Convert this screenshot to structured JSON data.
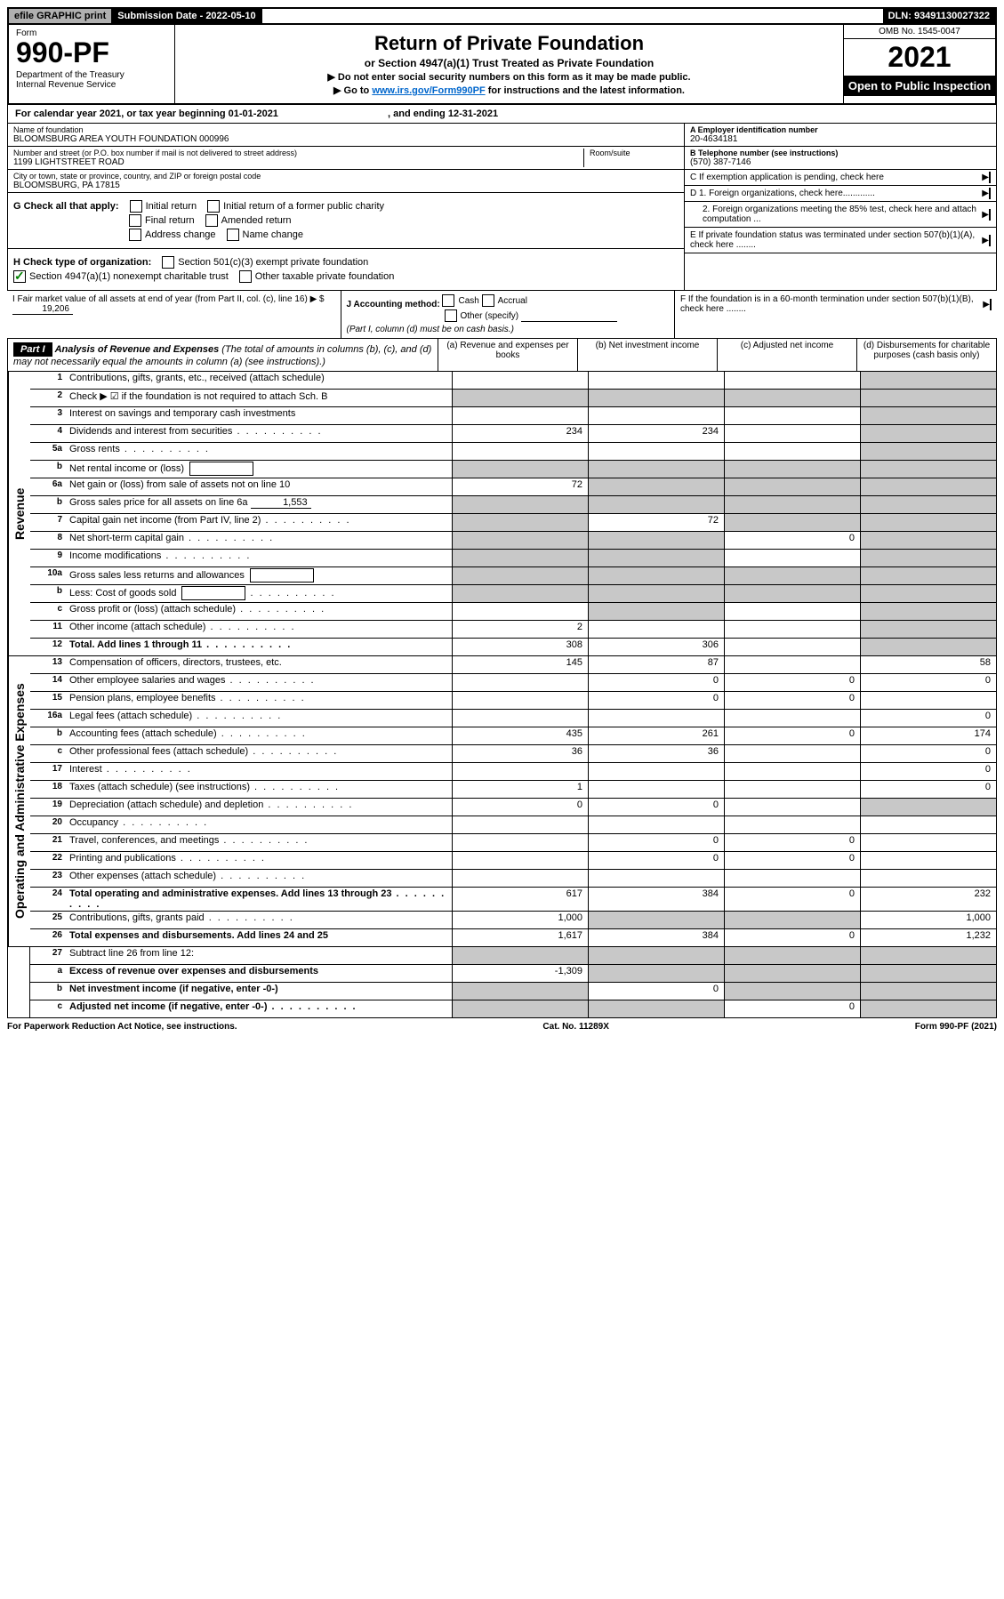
{
  "topbar": {
    "efile": "efile GRAPHIC print",
    "sub_label": "Submission Date - 2022-05-10",
    "dln": "DLN: 93491130027322"
  },
  "header": {
    "form_label": "Form",
    "form_no": "990-PF",
    "dept": "Department of the Treasury\nInternal Revenue Service",
    "title": "Return of Private Foundation",
    "subtitle": "or Section 4947(a)(1) Trust Treated as Private Foundation",
    "note1": "▶ Do not enter social security numbers on this form as it may be made public.",
    "note2_pre": "▶ Go to ",
    "note2_link": "www.irs.gov/Form990PF",
    "note2_post": " for instructions and the latest information.",
    "omb": "OMB No. 1545-0047",
    "year": "2021",
    "open": "Open to Public Inspection"
  },
  "cal_year": {
    "pre": "For calendar year 2021, or tax year beginning ",
    "begin": "01-01-2021",
    "mid": " , and ending ",
    "end": "12-31-2021"
  },
  "foundation": {
    "name_lbl": "Name of foundation",
    "name": "BLOOMSBURG AREA YOUTH FOUNDATION 000996",
    "addr_lbl": "Number and street (or P.O. box number if mail is not delivered to street address)",
    "addr": "1199 LIGHTSTREET ROAD",
    "room_lbl": "Room/suite",
    "city_lbl": "City or town, state or province, country, and ZIP or foreign postal code",
    "city": "BLOOMSBURG, PA  17815",
    "ein_lbl": "A Employer identification number",
    "ein": "20-4634181",
    "phone_lbl": "B Telephone number (see instructions)",
    "phone": "(570) 387-7146",
    "c": "C If exemption application is pending, check here",
    "d1": "D 1. Foreign organizations, check here.............",
    "d2": "2. Foreign organizations meeting the 85% test, check here and attach computation ...",
    "e": "E  If private foundation status was terminated under section 507(b)(1)(A), check here ........",
    "f": "F  If the foundation is in a 60-month termination under section 507(b)(1)(B), check here ........"
  },
  "g": {
    "label": "G Check all that apply:",
    "opts": [
      "Initial return",
      "Final return",
      "Address change",
      "Initial return of a former public charity",
      "Amended return",
      "Name change"
    ]
  },
  "h": {
    "label": "H Check type of organization:",
    "opt1": "Section 501(c)(3) exempt private foundation",
    "opt2": "Section 4947(a)(1) nonexempt charitable trust",
    "opt3": "Other taxable private foundation"
  },
  "i": {
    "label": "I Fair market value of all assets at end of year (from Part II, col. (c), line 16)",
    "val": "19,206"
  },
  "j": {
    "label": "J Accounting method:",
    "cash": "Cash",
    "accrual": "Accrual",
    "other": "Other (specify)",
    "note": "(Part I, column (d) must be on cash basis.)"
  },
  "part1": {
    "tag": "Part I",
    "title": "Analysis of Revenue and Expenses",
    "paren": "(The total of amounts in columns (b), (c), and (d) may not necessarily equal the amounts in column (a) (see instructions).)",
    "col_a": "(a)   Revenue and expenses per books",
    "col_b": "(b)   Net investment income",
    "col_c": "(c)   Adjusted net income",
    "col_d": "(d)  Disbursements for charitable purposes (cash basis only)"
  },
  "sections": {
    "revenue": "Revenue",
    "expenses": "Operating and Administrative Expenses"
  },
  "rows": [
    {
      "no": "1",
      "label": "Contributions, gifts, grants, etc., received (attach schedule)",
      "a": "",
      "b": "",
      "c": "",
      "d": "",
      "grey": [
        "d"
      ]
    },
    {
      "no": "2",
      "label": "Check ▶ ☑ if the foundation is not required to attach Sch. B",
      "bold_check": true,
      "a": "",
      "b": "",
      "c": "",
      "d": "",
      "grey": [
        "a",
        "b",
        "c",
        "d"
      ]
    },
    {
      "no": "3",
      "label": "Interest on savings and temporary cash investments",
      "a": "",
      "b": "",
      "c": "",
      "d": "",
      "grey": [
        "d"
      ]
    },
    {
      "no": "4",
      "label": "Dividends and interest from securities",
      "dots": true,
      "a": "234",
      "b": "234",
      "c": "",
      "d": "",
      "grey": [
        "d"
      ]
    },
    {
      "no": "5a",
      "label": "Gross rents",
      "dots": true,
      "a": "",
      "b": "",
      "c": "",
      "d": "",
      "grey": [
        "d"
      ]
    },
    {
      "no": "b",
      "label": "Net rental income or (loss)",
      "inline_box": true,
      "a": "",
      "b": "",
      "c": "",
      "d": "",
      "grey": [
        "a",
        "b",
        "c",
        "d"
      ]
    },
    {
      "no": "6a",
      "label": "Net gain or (loss) from sale of assets not on line 10",
      "a": "72",
      "b": "",
      "c": "",
      "d": "",
      "grey": [
        "b",
        "c",
        "d"
      ]
    },
    {
      "no": "b",
      "label": "Gross sales price for all assets on line 6a",
      "under": "1,553",
      "a": "",
      "b": "",
      "c": "",
      "d": "",
      "grey": [
        "a",
        "b",
        "c",
        "d"
      ]
    },
    {
      "no": "7",
      "label": "Capital gain net income (from Part IV, line 2)",
      "dots": true,
      "a": "",
      "b": "72",
      "c": "",
      "d": "",
      "grey": [
        "a",
        "c",
        "d"
      ]
    },
    {
      "no": "8",
      "label": "Net short-term capital gain",
      "dots": true,
      "a": "",
      "b": "",
      "c": "0",
      "d": "",
      "grey": [
        "a",
        "b",
        "d"
      ]
    },
    {
      "no": "9",
      "label": "Income modifications",
      "dots": true,
      "a": "",
      "b": "",
      "c": "",
      "d": "",
      "grey": [
        "a",
        "b",
        "d"
      ]
    },
    {
      "no": "10a",
      "label": "Gross sales less returns and allowances",
      "inline_box": true,
      "a": "",
      "b": "",
      "c": "",
      "d": "",
      "grey": [
        "a",
        "b",
        "c",
        "d"
      ]
    },
    {
      "no": "b",
      "label": "Less: Cost of goods sold",
      "dots": true,
      "inline_box": true,
      "a": "",
      "b": "",
      "c": "",
      "d": "",
      "grey": [
        "a",
        "b",
        "c",
        "d"
      ]
    },
    {
      "no": "c",
      "label": "Gross profit or (loss) (attach schedule)",
      "dots": true,
      "a": "",
      "b": "",
      "c": "",
      "d": "",
      "grey": [
        "b",
        "d"
      ]
    },
    {
      "no": "11",
      "label": "Other income (attach schedule)",
      "dots": true,
      "a": "2",
      "b": "",
      "c": "",
      "d": "",
      "grey": [
        "d"
      ]
    },
    {
      "no": "12",
      "label": "Total. Add lines 1 through 11",
      "bold": true,
      "dots": true,
      "a": "308",
      "b": "306",
      "c": "",
      "d": "",
      "grey": [
        "d"
      ]
    }
  ],
  "exp_rows": [
    {
      "no": "13",
      "label": "Compensation of officers, directors, trustees, etc.",
      "a": "145",
      "b": "87",
      "c": "",
      "d": "58"
    },
    {
      "no": "14",
      "label": "Other employee salaries and wages",
      "dots": true,
      "a": "",
      "b": "0",
      "c": "0",
      "d": "0"
    },
    {
      "no": "15",
      "label": "Pension plans, employee benefits",
      "dots": true,
      "a": "",
      "b": "0",
      "c": "0",
      "d": ""
    },
    {
      "no": "16a",
      "label": "Legal fees (attach schedule)",
      "dots": true,
      "a": "",
      "b": "",
      "c": "",
      "d": "0"
    },
    {
      "no": "b",
      "label": "Accounting fees (attach schedule)",
      "dots": true,
      "a": "435",
      "b": "261",
      "c": "0",
      "d": "174"
    },
    {
      "no": "c",
      "label": "Other professional fees (attach schedule)",
      "dots": true,
      "a": "36",
      "b": "36",
      "c": "",
      "d": "0"
    },
    {
      "no": "17",
      "label": "Interest",
      "dots": true,
      "a": "",
      "b": "",
      "c": "",
      "d": "0"
    },
    {
      "no": "18",
      "label": "Taxes (attach schedule) (see instructions)",
      "dots": true,
      "a": "1",
      "b": "",
      "c": "",
      "d": "0"
    },
    {
      "no": "19",
      "label": "Depreciation (attach schedule) and depletion",
      "dots": true,
      "a": "0",
      "b": "0",
      "c": "",
      "d": "",
      "grey": [
        "d"
      ]
    },
    {
      "no": "20",
      "label": "Occupancy",
      "dots": true,
      "a": "",
      "b": "",
      "c": "",
      "d": ""
    },
    {
      "no": "21",
      "label": "Travel, conferences, and meetings",
      "dots": true,
      "a": "",
      "b": "0",
      "c": "0",
      "d": ""
    },
    {
      "no": "22",
      "label": "Printing and publications",
      "dots": true,
      "a": "",
      "b": "0",
      "c": "0",
      "d": ""
    },
    {
      "no": "23",
      "label": "Other expenses (attach schedule)",
      "dots": true,
      "a": "",
      "b": "",
      "c": "",
      "d": ""
    },
    {
      "no": "24",
      "label": "Total operating and administrative expenses. Add lines 13 through 23",
      "bold": true,
      "dots": true,
      "a": "617",
      "b": "384",
      "c": "0",
      "d": "232"
    },
    {
      "no": "25",
      "label": "Contributions, gifts, grants paid",
      "dots": true,
      "a": "1,000",
      "b": "",
      "c": "",
      "d": "1,000",
      "grey": [
        "b",
        "c"
      ]
    },
    {
      "no": "26",
      "label": "Total expenses and disbursements. Add lines 24 and 25",
      "bold": true,
      "a": "1,617",
      "b": "384",
      "c": "0",
      "d": "1,232"
    }
  ],
  "bottom_rows": [
    {
      "no": "27",
      "label": "Subtract line 26 from line 12:",
      "a": "",
      "b": "",
      "c": "",
      "d": "",
      "grey": [
        "a",
        "b",
        "c",
        "d"
      ]
    },
    {
      "no": "a",
      "label": "Excess of revenue over expenses and disbursements",
      "bold": true,
      "a": "-1,309",
      "b": "",
      "c": "",
      "d": "",
      "grey": [
        "b",
        "c",
        "d"
      ]
    },
    {
      "no": "b",
      "label": "Net investment income (if negative, enter -0-)",
      "bold": true,
      "a": "",
      "b": "0",
      "c": "",
      "d": "",
      "grey": [
        "a",
        "c",
        "d"
      ]
    },
    {
      "no": "c",
      "label": "Adjusted net income (if negative, enter -0-)",
      "bold": true,
      "dots": true,
      "a": "",
      "b": "",
      "c": "0",
      "d": "",
      "grey": [
        "a",
        "b",
        "d"
      ]
    }
  ],
  "footer": {
    "left": "For Paperwork Reduction Act Notice, see instructions.",
    "mid": "Cat. No. 11289X",
    "right": "Form 990-PF (2021)"
  }
}
